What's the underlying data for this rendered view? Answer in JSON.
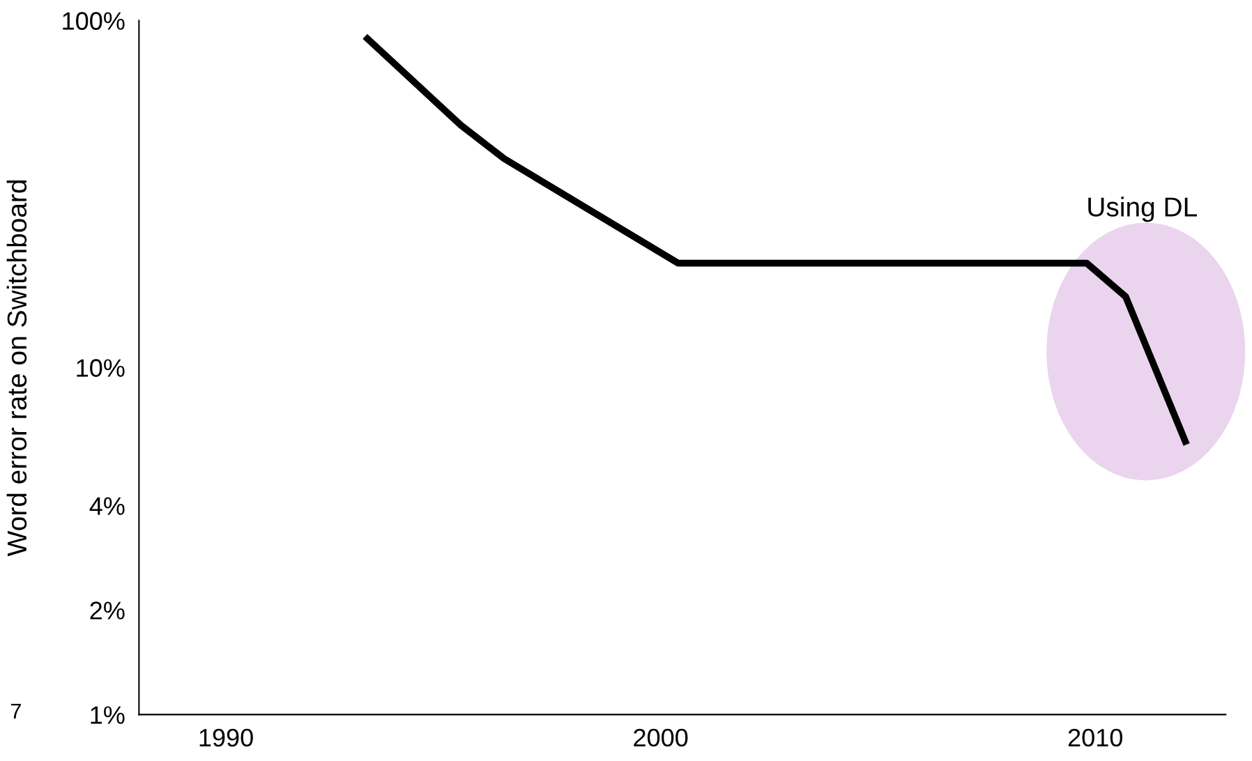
{
  "chart_data": {
    "type": "line",
    "ylabel": "Word error rate on Switchboard",
    "x": [
      1993.2,
      1995.4,
      1996.4,
      2000.4,
      2009.8,
      2010.7,
      2012.1
    ],
    "series": [
      {
        "color": "#000000",
        "values": [
          90,
          50,
          40,
          20,
          20,
          16,
          6
        ]
      }
    ],
    "log": "y",
    "xlim": [
      1988,
      2013
    ],
    "xticks": [
      1990,
      2000,
      2010
    ],
    "ylim": [
      1,
      100
    ],
    "yticks": [
      {
        "value": 1,
        "label": "1%"
      },
      {
        "value": 2,
        "label": "2%"
      },
      {
        "value": 4,
        "label": "4%"
      },
      {
        "value": 10,
        "label": "10%"
      },
      {
        "value": 100,
        "label": "100%"
      }
    ],
    "grid": false,
    "marker": "none",
    "line_style": "solid",
    "annotations": [
      "Using DL",
      "7"
    ]
  }
}
